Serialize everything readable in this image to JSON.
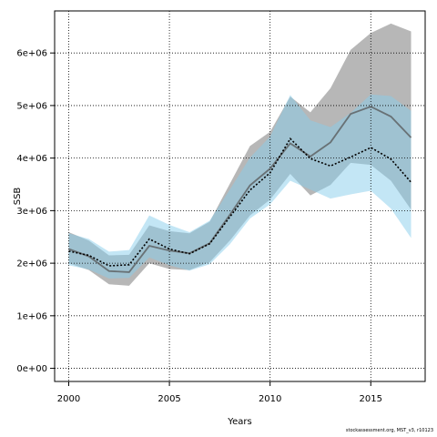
{
  "chart_data": {
    "type": "area",
    "xlabel": "Years",
    "ylabel": "SSB",
    "xlim": [
      1999.3,
      2017.7
    ],
    "ylim": [
      -250000,
      6800000
    ],
    "x_ticks": [
      2000,
      2005,
      2010,
      2015
    ],
    "x_tick_labels": [
      "2000",
      "2005",
      "2010",
      "2015"
    ],
    "y_ticks": [
      0,
      1000000,
      2000000,
      3000000,
      4000000,
      5000000,
      6000000
    ],
    "y_tick_labels": [
      "0e+00",
      "1e+06",
      "2e+06",
      "3e+06",
      "4e+06",
      "5e+06",
      "6e+06"
    ],
    "grid": true,
    "x": [
      2000,
      2001,
      2002,
      2003,
      2004,
      2005,
      2006,
      2007,
      2008,
      2009,
      2010,
      2011,
      2012,
      2013,
      2014,
      2015,
      2016,
      2017
    ],
    "series": [
      {
        "key": "grey_run",
        "style": "solid",
        "band_color": "#aaaaaa",
        "line_color": "#555555",
        "values": [
          2270000,
          2130000,
          1850000,
          1830000,
          2330000,
          2240000,
          2190000,
          2380000,
          2920000,
          3480000,
          3800000,
          4280000,
          4030000,
          4300000,
          4840000,
          4980000,
          4790000,
          4390000
        ],
        "lower": [
          2000000,
          1870000,
          1600000,
          1570000,
          2000000,
          1890000,
          1870000,
          2020000,
          2430000,
          2910000,
          3210000,
          3700000,
          3290000,
          3490000,
          3910000,
          3870000,
          3570000,
          3020000
        ],
        "upper": [
          2590000,
          2430000,
          2150000,
          2160000,
          2720000,
          2610000,
          2570000,
          2790000,
          3510000,
          4230000,
          4500000,
          5170000,
          4870000,
          5330000,
          6060000,
          6380000,
          6560000,
          6410000
        ]
      },
      {
        "key": "blue_run",
        "style": "dotted",
        "band_color": "#87ceeb",
        "line_color": "#000000",
        "values": [
          2230000,
          2150000,
          1950000,
          1970000,
          2460000,
          2270000,
          2180000,
          2370000,
          2880000,
          3390000,
          3720000,
          4370000,
          3990000,
          3850000,
          4020000,
          4200000,
          3980000,
          3540000
        ],
        "lower": [
          1960000,
          1880000,
          1710000,
          1720000,
          2110000,
          1960000,
          1860000,
          1980000,
          2360000,
          2850000,
          3120000,
          3570000,
          3400000,
          3230000,
          3310000,
          3380000,
          3040000,
          2480000
        ],
        "upper": [
          2570000,
          2460000,
          2220000,
          2250000,
          2910000,
          2730000,
          2590000,
          2810000,
          3400000,
          4010000,
          4410000,
          5200000,
          4720000,
          4590000,
          4860000,
          5210000,
          5180000,
          4900000
        ]
      }
    ]
  },
  "footer": {
    "text": "stockassessment.org, MST_v3, r10123"
  }
}
